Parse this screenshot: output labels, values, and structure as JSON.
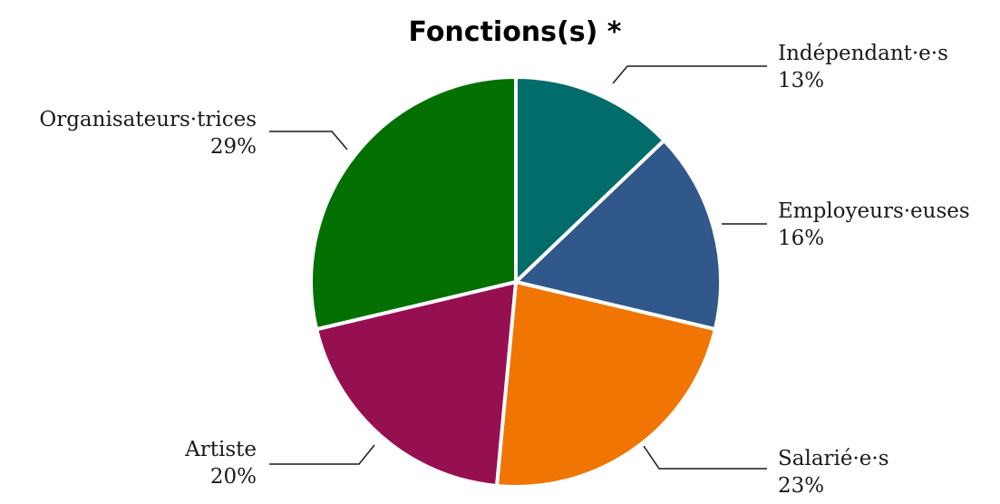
{
  "chart_data": {
    "type": "pie",
    "title": "Fonctions(s) *",
    "slices": [
      {
        "label": "Indépendant·e·s",
        "value": 13,
        "value_label": "13%",
        "color": "#016c69"
      },
      {
        "label": "Employeurs·euses",
        "value": 16,
        "value_label": "16%",
        "color": "#30588a"
      },
      {
        "label": "Salarié·e·s",
        "value": 23,
        "value_label": "23%",
        "color": "#f07502"
      },
      {
        "label": "Artiste",
        "value": 20,
        "value_label": "20%",
        "color": "#960f51"
      },
      {
        "label": "Organisateurs·trices",
        "value": 29,
        "value_label": "29%",
        "color": "#037001"
      }
    ],
    "start_angle": "12 o'clock",
    "direction": "clockwise",
    "legend": "none"
  }
}
